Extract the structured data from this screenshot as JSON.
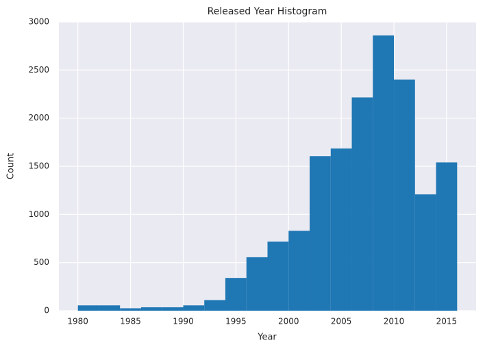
{
  "chart_data": {
    "type": "histogram",
    "title": "Released Year Histogram",
    "x_label": "Year",
    "y_label": "Count",
    "bins": [
      1980,
      1982,
      1984,
      1986,
      1988,
      1990,
      1992,
      1994,
      1996,
      1998,
      2000,
      2002,
      2004,
      2006,
      2008,
      2010,
      2012,
      2014,
      2016
    ],
    "values": [
      55,
      55,
      25,
      35,
      35,
      55,
      110,
      340,
      555,
      718,
      830,
      1605,
      1685,
      2215,
      2860,
      2400,
      1208,
      1540
    ],
    "color": "#1f77b4",
    "xlim": [
      1978.2,
      2017.8
    ],
    "xticks": [
      1980,
      1985,
      1990,
      1995,
      2000,
      2005,
      2010,
      2015
    ],
    "ylim": [
      0,
      3000
    ],
    "yticks": [
      0,
      500,
      1000,
      1500,
      2000,
      2500,
      3000
    ],
    "grid": true
  }
}
